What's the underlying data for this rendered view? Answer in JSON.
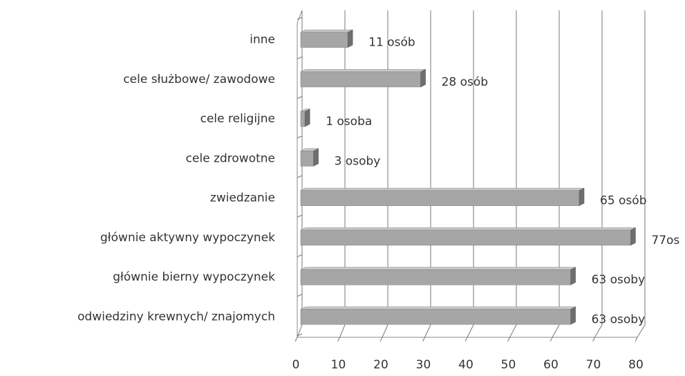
{
  "chart_data": {
    "type": "bar3d_horizontal",
    "categories": [
      "inne",
      "cele służbowe/ zawodowe",
      "cele religijne",
      "cele zdrowotne",
      "zwiedzanie",
      "głównie aktywny wypoczynek",
      "głównie bierny wypoczynek",
      "odwiedziny krewnych/ znajomych"
    ],
    "values": [
      11,
      28,
      1,
      3,
      65,
      77,
      63,
      63
    ],
    "value_labels": [
      "11 osób",
      "28 osób",
      "1 osoba",
      "3 osoby",
      "65 osób",
      "77os",
      "63 osoby",
      "63 osoby"
    ],
    "color": "#a6a6a6",
    "xlim": [
      0,
      80
    ],
    "xticks": [
      0,
      10,
      20,
      30,
      40,
      50,
      60,
      70,
      80
    ],
    "grid": true
  }
}
